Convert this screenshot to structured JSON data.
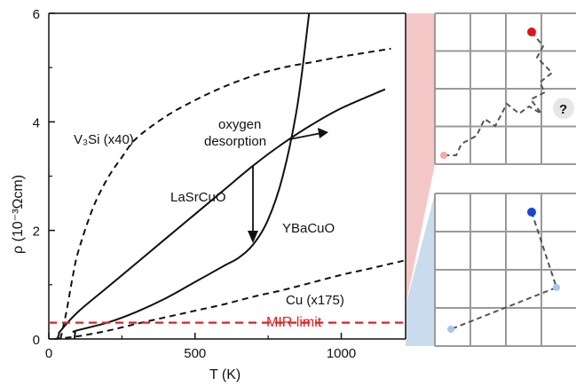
{
  "chart_data": {
    "type": "line",
    "xlabel": "T (K)",
    "ylabel": "ρ (10⁻³Ωcm)",
    "xlim": [
      0,
      1220
    ],
    "ylim": [
      0,
      6
    ],
    "xticks": [
      "0",
      "500",
      "1000"
    ],
    "yticks": [
      "0",
      "2",
      "4",
      "6"
    ],
    "series": [
      {
        "name": "V₃Si (x40)",
        "style": "dashed",
        "points": [
          [
            40,
            0
          ],
          [
            60,
            0.5
          ],
          [
            80,
            1.1
          ],
          [
            100,
            1.6
          ],
          [
            150,
            2.4
          ],
          [
            200,
            2.95
          ],
          [
            250,
            3.35
          ],
          [
            300,
            3.7
          ],
          [
            400,
            4.1
          ],
          [
            500,
            4.4
          ],
          [
            600,
            4.65
          ],
          [
            700,
            4.85
          ],
          [
            800,
            5.0
          ],
          [
            900,
            5.1
          ],
          [
            1000,
            5.2
          ],
          [
            1170,
            5.35
          ]
        ]
      },
      {
        "name": "LaSrCuO",
        "style": "solid",
        "points": [
          [
            28,
            0
          ],
          [
            35,
            0.08
          ],
          [
            40,
            0.15
          ],
          [
            100,
            0.5
          ],
          [
            200,
            0.95
          ],
          [
            300,
            1.4
          ],
          [
            400,
            1.85
          ],
          [
            500,
            2.3
          ],
          [
            600,
            2.75
          ],
          [
            700,
            3.2
          ],
          [
            800,
            3.6
          ],
          [
            900,
            3.95
          ],
          [
            1000,
            4.25
          ],
          [
            1150,
            4.6
          ]
        ]
      },
      {
        "name": "YBaCuO",
        "style": "solid",
        "points": [
          [
            88,
            0
          ],
          [
            90,
            0.12
          ],
          [
            92,
            0.15
          ],
          [
            200,
            0.3
          ],
          [
            300,
            0.5
          ],
          [
            400,
            0.75
          ],
          [
            500,
            1.05
          ],
          [
            600,
            1.35
          ],
          [
            650,
            1.5
          ],
          [
            700,
            1.75
          ],
          [
            750,
            2.2
          ],
          [
            800,
            3.0
          ],
          [
            850,
            4.3
          ],
          [
            890,
            6.0
          ]
        ]
      },
      {
        "name": "Cu (x175)",
        "style": "dashed",
        "points": [
          [
            20,
            0
          ],
          [
            100,
            0.05
          ],
          [
            200,
            0.15
          ],
          [
            300,
            0.28
          ],
          [
            400,
            0.4
          ],
          [
            500,
            0.52
          ],
          [
            600,
            0.64
          ],
          [
            700,
            0.78
          ],
          [
            800,
            0.9
          ],
          [
            900,
            1.04
          ],
          [
            1000,
            1.18
          ],
          [
            1100,
            1.3
          ],
          [
            1220,
            1.45
          ]
        ]
      }
    ],
    "hline": {
      "label": "MIR limit",
      "y": 0.3,
      "color": "#e02020",
      "style": "dashed"
    },
    "annotations": {
      "v3si": "V₃Si (x40)",
      "oxygen1": "oxygen",
      "oxygen2": "desorption",
      "lasrcuo": "LaSrCuO",
      "ybacuo": "YBaCuO",
      "cu": "Cu (x175)",
      "question": "?"
    },
    "grid": false,
    "colors": {
      "band_top": "#f4c7c7",
      "band_bottom": "#c8dcee",
      "red_dot": "#e01414",
      "blue_dot": "#1546d9",
      "pink_dot": "#f1a9a9",
      "lightblue_dot": "#a9c6ec",
      "grid": "#9a9a9a"
    }
  }
}
